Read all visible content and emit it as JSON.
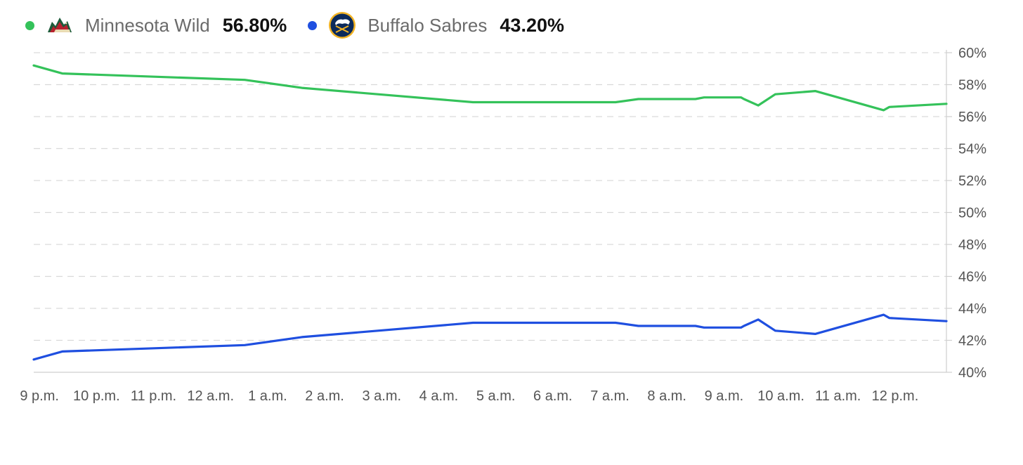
{
  "legend": {
    "teams": [
      {
        "name": "Minnesota Wild",
        "pct": "56.80%",
        "color": "#34c25a",
        "logo": "minnesota-wild-logo"
      },
      {
        "name": "Buffalo Sabres",
        "pct": "43.20%",
        "color": "#1f4fe0",
        "logo": "buffalo-sabres-logo"
      }
    ]
  },
  "chart_data": {
    "type": "line",
    "title": "",
    "xlabel": "",
    "ylabel": "",
    "ylim": [
      40,
      60
    ],
    "yticks": [
      "60%",
      "58%",
      "56%",
      "54%",
      "52%",
      "50%",
      "48%",
      "46%",
      "44%",
      "42%",
      "40%"
    ],
    "xticks": [
      "9 p.m.",
      "10 p.m.",
      "11 p.m.",
      "12 a.m.",
      "1 a.m.",
      "2 a.m.",
      "3 a.m.",
      "4 a.m.",
      "5 a.m.",
      "6 a.m.",
      "7 a.m.",
      "8 a.m.",
      "9 a.m.",
      "10 a.m.",
      "11 a.m.",
      "12 p.m."
    ],
    "x_unit": "hours since 9 p.m.",
    "xlim": [
      -0.1,
      15.9
    ],
    "grid": true,
    "series": [
      {
        "name": "Minnesota Wild",
        "color": "#34c25a",
        "points": [
          [
            -0.1,
            59.2
          ],
          [
            0.4,
            58.7
          ],
          [
            3.6,
            58.3
          ],
          [
            4.6,
            57.8
          ],
          [
            7.6,
            56.9
          ],
          [
            9.6,
            56.9
          ],
          [
            10.1,
            56.9
          ],
          [
            10.5,
            57.1
          ],
          [
            11.5,
            57.1
          ],
          [
            11.65,
            57.2
          ],
          [
            12.3,
            57.2
          ],
          [
            12.35,
            57.1
          ],
          [
            12.6,
            56.7
          ],
          [
            12.9,
            57.4
          ],
          [
            13.6,
            57.6
          ],
          [
            14.8,
            56.4
          ],
          [
            14.9,
            56.6
          ],
          [
            15.9,
            56.8
          ]
        ]
      },
      {
        "name": "Buffalo Sabres",
        "color": "#1f4fe0",
        "points": [
          [
            -0.1,
            40.8
          ],
          [
            0.4,
            41.3
          ],
          [
            3.6,
            41.7
          ],
          [
            4.6,
            42.2
          ],
          [
            7.6,
            43.1
          ],
          [
            9.6,
            43.1
          ],
          [
            10.1,
            43.1
          ],
          [
            10.5,
            42.9
          ],
          [
            11.5,
            42.9
          ],
          [
            11.65,
            42.8
          ],
          [
            12.3,
            42.8
          ],
          [
            12.35,
            42.9
          ],
          [
            12.6,
            43.3
          ],
          [
            12.9,
            42.6
          ],
          [
            13.6,
            42.4
          ],
          [
            14.8,
            43.6
          ],
          [
            14.9,
            43.4
          ],
          [
            15.9,
            43.2
          ]
        ]
      }
    ]
  }
}
